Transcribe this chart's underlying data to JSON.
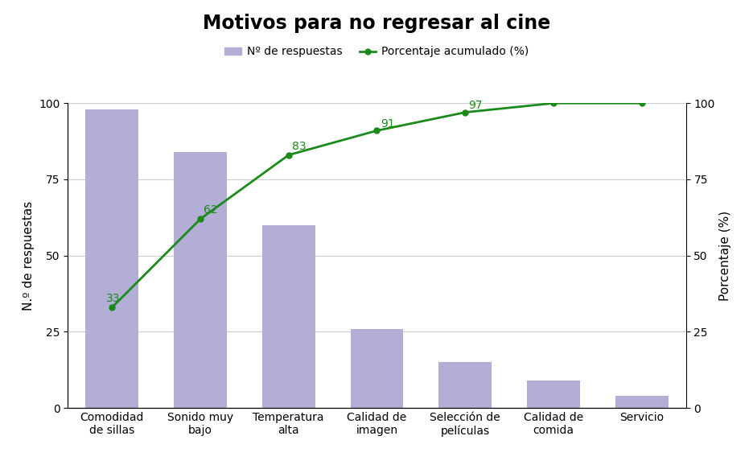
{
  "title": "Motivos para no regresar al cine",
  "categories": [
    "Comodidad\nde sillas",
    "Sonido muy\nbajo",
    "Temperatura\nalta",
    "Calidad de\nimagen",
    "Selección de\npelículas",
    "Calidad de\ncomida",
    "Servicio"
  ],
  "bar_values": [
    98,
    84,
    60,
    26,
    15,
    9,
    4
  ],
  "cumulative_pct": [
    33,
    62,
    83,
    91,
    97,
    100,
    100
  ],
  "bar_color": "#b3aed6",
  "line_color": "#1a8a1a",
  "marker_color": "#1a8a1a",
  "background_color": "#ffffff",
  "ylabel_left": "N.º de respuestas",
  "ylabel_right": "Porcentaje (%)",
  "ylim_left": [
    0,
    100
  ],
  "ylim_right": [
    0,
    100
  ],
  "yticks": [
    0,
    25,
    50,
    75,
    100
  ],
  "legend_bar_label": "Nº de respuestas",
  "legend_line_label": "Porcentaje acumulado (%)",
  "title_fontsize": 17,
  "axis_label_fontsize": 11,
  "tick_fontsize": 10,
  "legend_fontsize": 10,
  "annotation_fontsize": 10,
  "grid_color": "#cccccc"
}
